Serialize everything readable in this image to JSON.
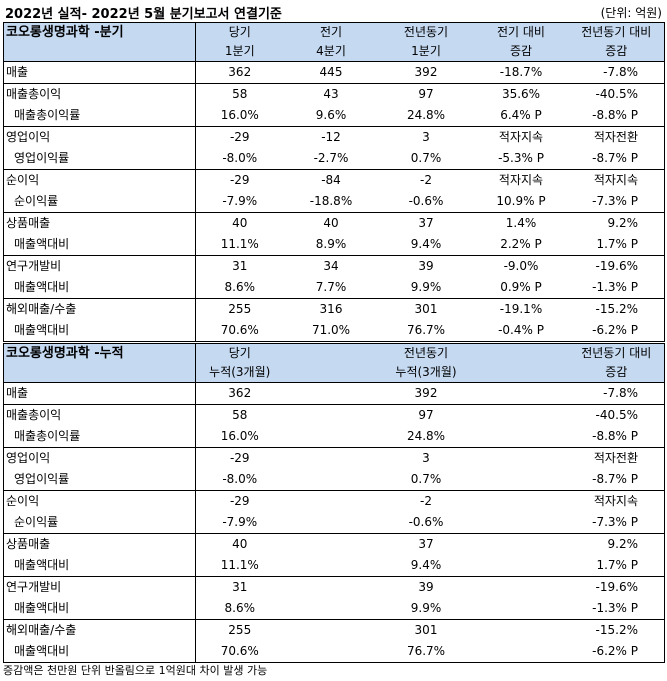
{
  "title": "2022년 실적- 2022년 5월 분기보고서 연결기준",
  "unit": "(단위: 억원)",
  "quarterly": {
    "section_title": "코오롱생명과학 -분기",
    "headers_top": [
      "당기",
      "전기",
      "전년동기",
      "전기 대비",
      "전년동기 대비"
    ],
    "headers_bottom": [
      "1분기",
      "4분기",
      "1분기",
      "증감",
      "증감"
    ],
    "rows": [
      {
        "label": "매출",
        "values": [
          "362",
          "445",
          "392",
          "-18.7%",
          "-7.8%"
        ]
      },
      {
        "label": "매출총이익",
        "values": [
          "58",
          "43",
          "97",
          "35.6%",
          "-40.5%"
        ]
      },
      {
        "label": "매출총이익률",
        "values": [
          "16.0%",
          "9.6%",
          "24.8%",
          "6.4% P",
          "-8.8% P"
        ]
      },
      {
        "label": "영업이익",
        "values": [
          "-29",
          "-12",
          "3",
          "적자지속",
          "적자전환"
        ]
      },
      {
        "label": "영업이익률",
        "values": [
          "-8.0%",
          "-2.7%",
          "0.7%",
          "-5.3% P",
          "-8.7% P"
        ]
      },
      {
        "label": "순이익",
        "values": [
          "-29",
          "-84",
          "-2",
          "적자지속",
          "적자지속"
        ]
      },
      {
        "label": "순이익률",
        "values": [
          "-7.9%",
          "-18.8%",
          "-0.6%",
          "10.9% P",
          "-7.3% P"
        ]
      },
      {
        "label": "상품매출",
        "values": [
          "40",
          "40",
          "37",
          "1.4%",
          "9.2%"
        ]
      },
      {
        "label": "매출액대비",
        "values": [
          "11.1%",
          "8.9%",
          "9.4%",
          "2.2% P",
          "1.7% P"
        ]
      },
      {
        "label": "연구개발비",
        "values": [
          "31",
          "34",
          "39",
          "-9.0%",
          "-19.6%"
        ]
      },
      {
        "label": "매출액대비",
        "values": [
          "8.6%",
          "7.7%",
          "9.9%",
          "0.9% P",
          "-1.3% P"
        ]
      },
      {
        "label": "해외매출/수출",
        "values": [
          "255",
          "316",
          "301",
          "-19.1%",
          "-15.2%"
        ]
      },
      {
        "label": "매출액대비",
        "values": [
          "70.6%",
          "71.0%",
          "76.7%",
          "-0.4% P",
          "-6.2% P"
        ]
      }
    ]
  },
  "cumulative": {
    "section_title": "코오롱생명과학 -누적",
    "headers_top": [
      "당기",
      "전년동기",
      "전년동기 대비"
    ],
    "headers_bottom": [
      "누적(3개월)",
      "누적(3개월)",
      "증감"
    ],
    "rows": [
      {
        "label": "매출",
        "values": [
          "362",
          "392",
          "-7.8%"
        ]
      },
      {
        "label": "매출총이익",
        "values": [
          "58",
          "97",
          "-40.5%"
        ]
      },
      {
        "label": "매출총이익률",
        "values": [
          "16.0%",
          "24.8%",
          "-8.8% P"
        ]
      },
      {
        "label": "영업이익",
        "values": [
          "-29",
          "3",
          "적자전환"
        ]
      },
      {
        "label": "영업이익률",
        "values": [
          "-8.0%",
          "0.7%",
          "-8.7% P"
        ]
      },
      {
        "label": "순이익",
        "values": [
          "-29",
          "-2",
          "적자지속"
        ]
      },
      {
        "label": "순이익률",
        "values": [
          "-7.9%",
          "-0.6%",
          "-7.3% P"
        ]
      },
      {
        "label": "상품매출",
        "values": [
          "40",
          "37",
          "9.2%"
        ]
      },
      {
        "label": "매출액대비",
        "values": [
          "11.1%",
          "9.4%",
          "1.7% P"
        ]
      },
      {
        "label": "연구개발비",
        "values": [
          "31",
          "39",
          "-19.6%"
        ]
      },
      {
        "label": "매출액대비",
        "values": [
          "8.6%",
          "9.9%",
          "-1.3% P"
        ]
      },
      {
        "label": "해외매출/수출",
        "values": [
          "255",
          "301",
          "-15.2%"
        ]
      },
      {
        "label": "매출액대비",
        "values": [
          "70.6%",
          "76.7%",
          "-6.2% P"
        ]
      }
    ]
  },
  "note": "증감액은 천만원 단위 반올림으로 1억원대 차이 발생 가능"
}
